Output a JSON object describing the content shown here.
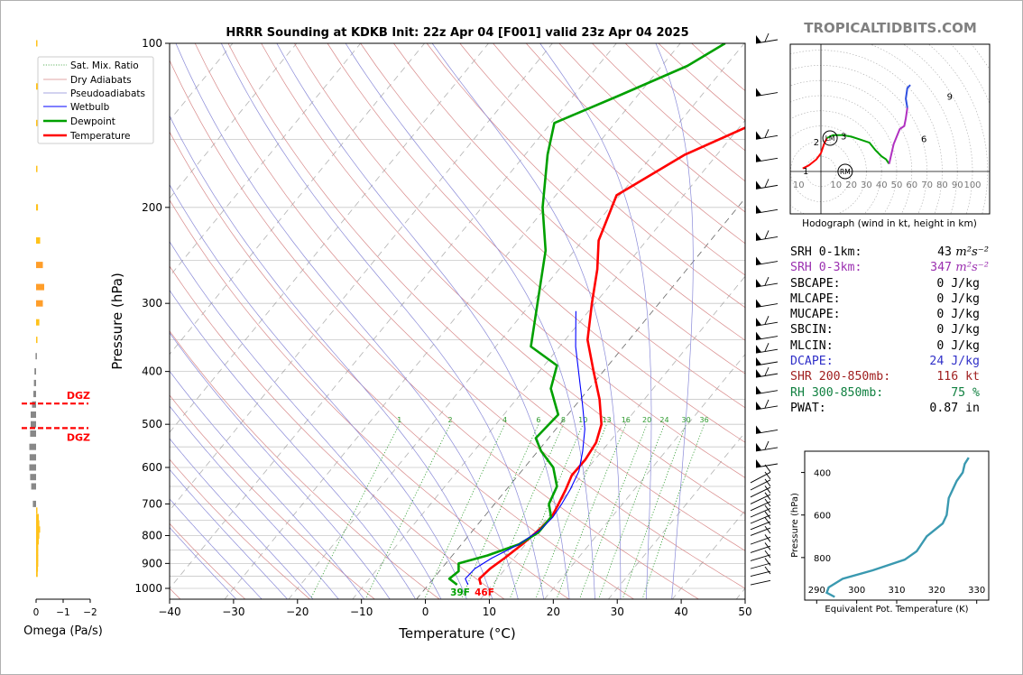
{
  "header": {
    "title": "HRRR Sounding at KDKB Init: 22z Apr 04 [F001] valid 23z Apr 04 2025",
    "brand": "TROPICALTIDBITS.COM"
  },
  "skewt": {
    "xlabel": "Temperature (°C)",
    "ylabel": "Pressure (hPa)",
    "xlim": [
      -40,
      50
    ],
    "ylim": [
      1050,
      100
    ],
    "x_ticks": [
      "−40",
      "−30",
      "−20",
      "−10",
      "0",
      "10",
      "20",
      "30",
      "40",
      "50"
    ],
    "y_ticks": [
      "100",
      "200",
      "300",
      "400",
      "500",
      "600",
      "700",
      "800",
      "900",
      "1000"
    ],
    "legend": [
      "Sat. Mix. Ratio",
      "Dry Adiabats",
      "Pseudoadiabats",
      "Wetbulb",
      "Dewpoint",
      "Temperature"
    ],
    "mixing_ratio_labels": [
      "1",
      "2",
      "4",
      "6",
      "8",
      "10",
      "13",
      "16",
      "20",
      "24",
      "30",
      "36"
    ],
    "surface_dewpoint_label": "39F",
    "surface_temp_label": "46F",
    "colors": {
      "temperature": "#ff0000",
      "dewpoint": "#00a000",
      "wetbulb": "#0000ff",
      "dry_adiabat": "#d88a8a",
      "pseudoadiabat": "#8a8ad8",
      "mixratio": "#2e9b2e"
    }
  },
  "omega": {
    "xlabel": "Omega (Pa/s)",
    "x_ticks": [
      "0",
      "−1",
      "−2"
    ],
    "dgz_label": "DGZ",
    "dgz_bounds_hpa": [
      458,
      508
    ]
  },
  "hodograph": {
    "caption": "Hodograph (wind in kt, height in km)",
    "ring_labels": [
      "10",
      "10",
      "20",
      "30",
      "40",
      "50",
      "60",
      "70",
      "80",
      "90",
      "100"
    ],
    "height_labels": [
      "1",
      "2",
      "3",
      "6",
      "9"
    ],
    "storm_motion_labels": [
      "LM",
      "RM"
    ]
  },
  "theta_e": {
    "xlabel": "Equivalent Pot. Temperature (K)",
    "ylabel": "Pressure (hPa)",
    "x_ticks": [
      "290",
      "300",
      "310",
      "320",
      "330"
    ],
    "y_ticks": [
      "400",
      "600",
      "800"
    ],
    "color": "#3a99b0"
  },
  "stats": [
    {
      "label": "SRH 0-1km:",
      "value": "43",
      "unit": "m²s⁻²",
      "color": "#000000"
    },
    {
      "label": "SRH 0-3km:",
      "value": "347",
      "unit": "m²s⁻²",
      "color": "#9b30b0"
    },
    {
      "label": "SBCAPE:",
      "value": "0 J/kg",
      "unit": "",
      "color": "#000000"
    },
    {
      "label": "MLCAPE:",
      "value": "0 J/kg",
      "unit": "",
      "color": "#000000"
    },
    {
      "label": "MUCAPE:",
      "value": "0 J/kg",
      "unit": "",
      "color": "#000000"
    },
    {
      "label": "SBCIN:",
      "value": "0 J/kg",
      "unit": "",
      "color": "#000000"
    },
    {
      "label": "MLCIN:",
      "value": "0 J/kg",
      "unit": "",
      "color": "#000000"
    },
    {
      "label": "DCAPE:",
      "value": "24 J/kg",
      "unit": "",
      "color": "#3030c8"
    },
    {
      "label": "SHR 200-850mb:",
      "value": "116 kt",
      "unit": "",
      "color": "#a02020"
    },
    {
      "label": "RH 300-850mb:",
      "value": "75 %",
      "unit": "",
      "color": "#108040"
    },
    {
      "label": "PWAT:",
      "value": "0.87 in",
      "unit": "",
      "color": "#000000"
    }
  ],
  "chart_data": [
    {
      "type": "line",
      "title": "HRRR Sounding at KDKB Init: 22z Apr 04 [F001] valid 23z Apr 04 2025",
      "xlabel": "Temperature (°C)",
      "ylabel": "Pressure (hPa)",
      "xlim": [
        -40,
        50
      ],
      "ylim": [
        1050,
        100
      ],
      "series": [
        {
          "name": "Temperature",
          "x": [
            8.2,
            7.2,
            7.6,
            8.5,
            9.5,
            10.3,
            10.6,
            10.0,
            9.3,
            8.4,
            8.5,
            8.0,
            6.5,
            3.0,
            -1.5,
            -6.5,
            -10.5,
            -14.0,
            -17.5,
            -20.5,
            -15.0,
            -8.0,
            -6.0,
            0.0
          ],
          "y": [
            985,
            960,
            920,
            880,
            830,
            780,
            740,
            700,
            660,
            620,
            580,
            540,
            500,
            450,
            400,
            350,
            300,
            260,
            230,
            190,
            160,
            140,
            120,
            100
          ]
        },
        {
          "name": "Dewpoint",
          "x": [
            4.5,
            2.5,
            3.0,
            2.0,
            5.5,
            9.0,
            10.5,
            10.5,
            8.5,
            7.5,
            4.5,
            0.5,
            -2.0,
            -1.5,
            -6.0,
            -8.0,
            -14.5,
            -19.0,
            -24.5,
            -30.5,
            -36.5,
            -39.5,
            -33.0,
            -26.0,
            -23.0
          ],
          "y": [
            985,
            960,
            930,
            900,
            870,
            830,
            790,
            740,
            700,
            650,
            600,
            560,
            530,
            480,
            430,
            390,
            360,
            300,
            240,
            200,
            160,
            140,
            125,
            110,
            100
          ]
        },
        {
          "name": "Wetbulb",
          "x": [
            6.2,
            5.0,
            5.2,
            6.5,
            9.0,
            10.5,
            10.8,
            10.5,
            10.0,
            9.0,
            7.0,
            4.5,
            1.0,
            -3.0,
            -7.5,
            -12.0
          ],
          "y": [
            985,
            960,
            920,
            880,
            830,
            780,
            740,
            700,
            660,
            610,
            560,
            510,
            460,
            410,
            360,
            310
          ]
        }
      ]
    },
    {
      "type": "bar",
      "xlabel": "Omega (Pa/s)",
      "xlim": [
        0.5,
        -2
      ],
      "categories": [
        100,
        120,
        140,
        170,
        200,
        230,
        255,
        280,
        300,
        325,
        350,
        375,
        400,
        420,
        440,
        460,
        480,
        500,
        520,
        550,
        575,
        600,
        625,
        650,
        700,
        720,
        740,
        760,
        780,
        800,
        820,
        840,
        860,
        880,
        900,
        920,
        940
      ],
      "values": [
        -0.05,
        -0.06,
        -0.05,
        -0.05,
        -0.07,
        -0.15,
        -0.25,
        -0.3,
        -0.25,
        -0.12,
        -0.05,
        0.02,
        0.06,
        0.08,
        0.1,
        0.15,
        0.2,
        0.2,
        0.22,
        0.25,
        0.24,
        0.25,
        0.22,
        0.18,
        0.12,
        -0.05,
        -0.1,
        -0.12,
        -0.15,
        -0.12,
        -0.1,
        -0.08,
        -0.08,
        -0.08,
        -0.08,
        -0.07,
        -0.06
      ]
    },
    {
      "type": "line",
      "xlabel": "Equivalent Pot. Temperature (K)",
      "ylabel": "Pressure (hPa)",
      "xlim": [
        287,
        333
      ],
      "ylim": [
        1000,
        300
      ],
      "series": [
        {
          "name": "",
          "x": [
            294.5,
            292.5,
            293.0,
            296.5,
            304.0,
            312.0,
            315.0,
            317.5,
            321.5,
            322.5,
            323.0,
            325.0,
            326.5,
            327.0,
            328.0
          ],
          "y": [
            985,
            965,
            940,
            900,
            860,
            810,
            770,
            700,
            640,
            600,
            520,
            440,
            400,
            360,
            330
          ]
        }
      ]
    },
    {
      "type": "line",
      "xlabel": "Hodograph (wind in kt, height in km)",
      "series": [
        {
          "name": "",
          "u": [
            -12,
            -8,
            -3,
            0,
            2,
            4
          ],
          "v": [
            2,
            4,
            8,
            12,
            18,
            22
          ]
        },
        {
          "name": "",
          "u": [
            4,
            8,
            14,
            20,
            26,
            32,
            36,
            40,
            43,
            45
          ],
          "v": [
            22,
            24,
            24,
            23,
            21,
            19,
            14,
            10,
            8,
            5
          ]
        },
        {
          "name": "",
          "u": [
            45,
            48,
            52,
            55,
            56,
            57
          ],
          "v": [
            5,
            18,
            28,
            30,
            35,
            42
          ]
        },
        {
          "name": "",
          "u": [
            57,
            56,
            57,
            59
          ],
          "v": [
            42,
            48,
            55,
            57
          ]
        }
      ]
    }
  ]
}
